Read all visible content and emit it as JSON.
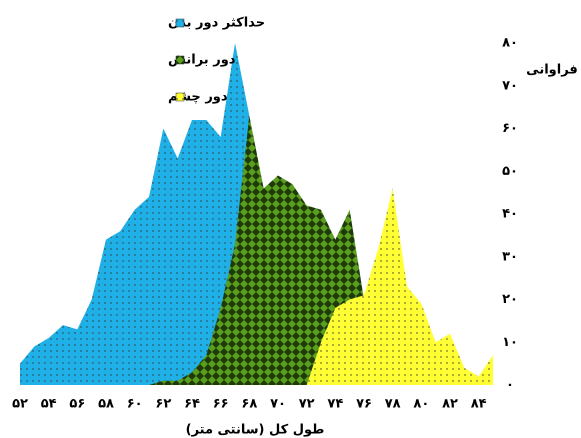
{
  "chart_data": {
    "type": "area",
    "x_label": "طول کل (سانتی متر)",
    "y_label": "فراوانی",
    "x": [
      52,
      53,
      54,
      55,
      56,
      57,
      58,
      59,
      60,
      61,
      62,
      63,
      64,
      65,
      66,
      67,
      68,
      69,
      70,
      71,
      72,
      73,
      74,
      75,
      76,
      77,
      78,
      79,
      80,
      81,
      82,
      83,
      84,
      85
    ],
    "series": [
      {
        "name": "حداکثر دور بدن",
        "color": "#1fb0e8",
        "pattern": "dots",
        "values": [
          5,
          9,
          11,
          14,
          13,
          20,
          34,
          36,
          41,
          44,
          60,
          53,
          62,
          62,
          58,
          80,
          63,
          0,
          null,
          null,
          null,
          null,
          null,
          null,
          null,
          null,
          null,
          null,
          null,
          null,
          null,
          null,
          null,
          null
        ]
      },
      {
        "name": "دور برانش",
        "color": "#5a9e1e",
        "pattern": "checker",
        "values": [
          null,
          null,
          null,
          null,
          null,
          null,
          null,
          null,
          null,
          0,
          1,
          1,
          3,
          7,
          18,
          33,
          63,
          46,
          49,
          47,
          42,
          41,
          34,
          41,
          20,
          0,
          null,
          null,
          null,
          null,
          null,
          null,
          null,
          null
        ]
      },
      {
        "name": "دور چشم",
        "color": "#ffff33",
        "pattern": "dots",
        "values": [
          null,
          null,
          null,
          null,
          null,
          null,
          null,
          null,
          null,
          null,
          null,
          null,
          null,
          null,
          null,
          null,
          null,
          null,
          null,
          null,
          0,
          10,
          18,
          20,
          21,
          32,
          46,
          23,
          19,
          10,
          12,
          4,
          2,
          7
        ]
      }
    ],
    "xlim": [
      52,
      85
    ],
    "ylim": [
      0,
      80
    ],
    "xticks": [
      {
        "value": 52,
        "label": "۵۲"
      },
      {
        "value": 54,
        "label": "۵۴"
      },
      {
        "value": 56,
        "label": "۵۶"
      },
      {
        "value": 58,
        "label": "۵۸"
      },
      {
        "value": 60,
        "label": "۶۰"
      },
      {
        "value": 62,
        "label": "۶۲"
      },
      {
        "value": 64,
        "label": "۶۴"
      },
      {
        "value": 66,
        "label": "۶۶"
      },
      {
        "value": 68,
        "label": "۶۸"
      },
      {
        "value": 70,
        "label": "۷۰"
      },
      {
        "value": 72,
        "label": "۷۲"
      },
      {
        "value": 74,
        "label": "۷۴"
      },
      {
        "value": 76,
        "label": "۷۶"
      },
      {
        "value": 78,
        "label": "۷۸"
      },
      {
        "value": 80,
        "label": "۸۰"
      },
      {
        "value": 82,
        "label": "۸۲"
      },
      {
        "value": 84,
        "label": "۸۴"
      }
    ],
    "yticks": [
      {
        "value": 0,
        "label": "۰"
      },
      {
        "value": 10,
        "label": "۱۰"
      },
      {
        "value": 20,
        "label": "۲۰"
      },
      {
        "value": 30,
        "label": "۳۰"
      },
      {
        "value": 40,
        "label": "۴۰"
      },
      {
        "value": 50,
        "label": "۵۰"
      },
      {
        "value": 60,
        "label": "۶۰"
      },
      {
        "value": 70,
        "label": "۷۰"
      },
      {
        "value": 80,
        "label": "۸۰"
      }
    ],
    "y_axis_side": "right",
    "legend": "top-left"
  }
}
